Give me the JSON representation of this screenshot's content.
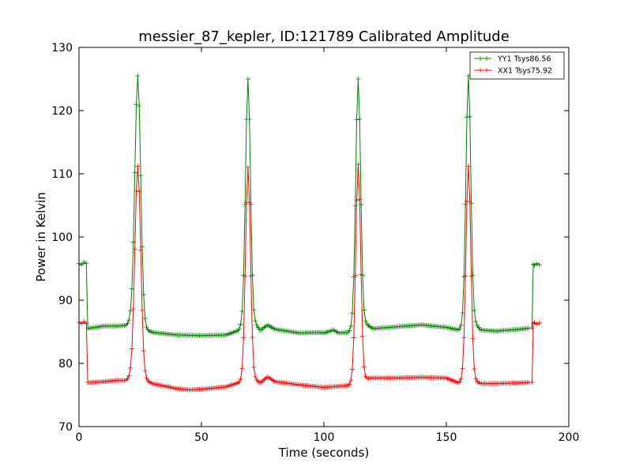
{
  "chart_data": {
    "type": "line",
    "title": "messier_87_kepler, ID:121789 Calibrated Amplitude",
    "xlabel": "Time (seconds)",
    "ylabel": "Power in Kelvin",
    "xlim": [
      0,
      200
    ],
    "ylim": [
      70,
      130
    ],
    "xticks": [
      0,
      50,
      100,
      150,
      200
    ],
    "yticks": [
      70,
      80,
      90,
      100,
      110,
      120,
      130
    ],
    "grid": false,
    "legend": "top-right",
    "marker": "plus",
    "series": [
      {
        "name": "YY1 Tsys86.56",
        "color": "#008000",
        "baseline": [
          [
            3,
            85.5
          ],
          [
            5,
            85.6
          ],
          [
            10,
            85.9
          ],
          [
            15,
            85.9
          ],
          [
            19,
            86.0
          ],
          [
            21,
            86.6
          ],
          [
            27,
            85.4
          ],
          [
            30,
            84.9
          ],
          [
            40,
            84.5
          ],
          [
            50,
            84.4
          ],
          [
            60,
            84.5
          ],
          [
            65,
            85.2
          ],
          [
            67,
            86.3
          ],
          [
            72,
            86.3
          ],
          [
            74,
            85.2
          ],
          [
            77,
            86.1
          ],
          [
            80,
            85.4
          ],
          [
            90,
            84.8
          ],
          [
            98,
            84.9
          ],
          [
            100,
            84.8
          ],
          [
            104,
            85.3
          ],
          [
            106,
            84.8
          ],
          [
            110,
            84.9
          ],
          [
            112,
            86.0
          ],
          [
            117,
            86.3
          ],
          [
            120,
            85.5
          ],
          [
            130,
            85.8
          ],
          [
            140,
            86.1
          ],
          [
            150,
            85.7
          ],
          [
            155,
            85.3
          ],
          [
            157,
            85.9
          ],
          [
            162,
            86.2
          ],
          [
            164,
            85.3
          ],
          [
            170,
            85.1
          ],
          [
            180,
            85.4
          ],
          [
            184,
            85.6
          ]
        ],
        "pulses": [
          [
            24,
            125.5,
            1.2
          ],
          [
            69,
            125.0,
            1.0
          ],
          [
            114,
            125.0,
            1.0
          ],
          [
            159,
            125.5,
            1.0
          ]
        ],
        "steps": [
          [
            0,
            95.8
          ],
          [
            1,
            95.6
          ],
          [
            2,
            96.0
          ],
          [
            3,
            95.8
          ],
          [
            3.5,
            85.6
          ],
          [
            185,
            85.6
          ],
          [
            185.5,
            95.7
          ],
          [
            186,
            95.5
          ],
          [
            187,
            95.8
          ],
          [
            188,
            95.6
          ]
        ]
      },
      {
        "name": "XX1 Tsys75.92",
        "color": "#ff0000",
        "baseline": [
          [
            3,
            77.0
          ],
          [
            5,
            77.0
          ],
          [
            10,
            77.1
          ],
          [
            15,
            77.3
          ],
          [
            19,
            77.3
          ],
          [
            21,
            77.8
          ],
          [
            27,
            77.4
          ],
          [
            30,
            76.8
          ],
          [
            40,
            76.0
          ],
          [
            45,
            75.8
          ],
          [
            50,
            75.9
          ],
          [
            60,
            76.3
          ],
          [
            65,
            76.9
          ],
          [
            67,
            77.4
          ],
          [
            72,
            77.5
          ],
          [
            74,
            76.9
          ],
          [
            77,
            77.9
          ],
          [
            80,
            77.1
          ],
          [
            90,
            76.6
          ],
          [
            100,
            76.2
          ],
          [
            110,
            76.5
          ],
          [
            112,
            77.3
          ],
          [
            117,
            77.6
          ],
          [
            120,
            77.7
          ],
          [
            130,
            77.7
          ],
          [
            140,
            77.8
          ],
          [
            150,
            77.7
          ],
          [
            155,
            76.9
          ],
          [
            157,
            77.4
          ],
          [
            162,
            77.2
          ],
          [
            164,
            76.8
          ],
          [
            170,
            76.8
          ],
          [
            180,
            76.9
          ],
          [
            184,
            77.0
          ]
        ],
        "pulses": [
          [
            24,
            111.2,
            1.2
          ],
          [
            69,
            111.0,
            1.0
          ],
          [
            114,
            111.5,
            1.0
          ],
          [
            159,
            111.2,
            1.0
          ]
        ],
        "steps": [
          [
            0,
            86.5
          ],
          [
            1,
            86.3
          ],
          [
            2,
            86.6
          ],
          [
            3,
            86.3
          ],
          [
            3.5,
            77.0
          ],
          [
            185,
            77.0
          ],
          [
            185.5,
            86.3
          ],
          [
            186,
            86.5
          ],
          [
            187,
            86.2
          ],
          [
            188,
            86.4
          ]
        ]
      }
    ]
  }
}
